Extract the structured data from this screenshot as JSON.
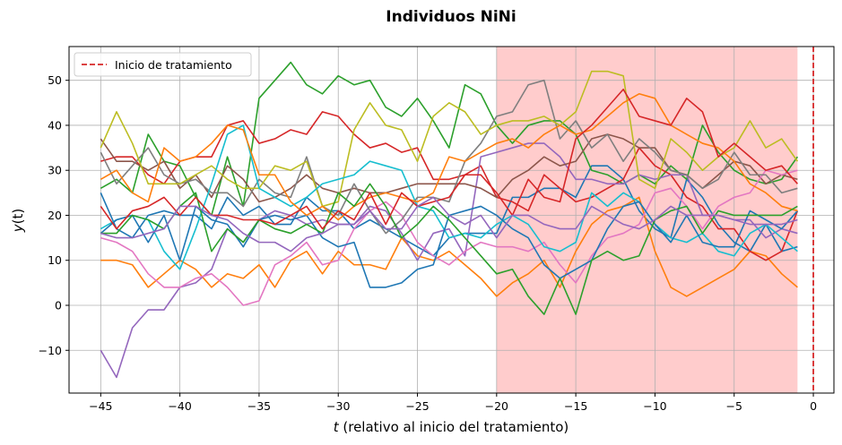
{
  "chart_data": {
    "type": "line",
    "title": "Individuos NiNi",
    "xlabel_var": "t",
    "xlabel_rest": " (relativo al inicio del tratamiento)",
    "ylabel_var": "y",
    "ylabel_rest": "(t)",
    "xlim": [
      -47,
      1.3
    ],
    "ylim": [
      -19.5,
      57.5
    ],
    "xticks": [
      -45,
      -40,
      -35,
      -30,
      -25,
      -20,
      -15,
      -10,
      -5,
      0
    ],
    "xtick_labels": [
      "−45",
      "−40",
      "−35",
      "−30",
      "−25",
      "−20",
      "−15",
      "−10",
      "−5",
      "0"
    ],
    "yticks": [
      -10,
      0,
      10,
      20,
      30,
      40,
      50
    ],
    "ytick_labels": [
      "−10",
      "0",
      "10",
      "20",
      "30",
      "40",
      "50"
    ],
    "grid": true,
    "shaded_region": {
      "x0": -20,
      "x1": -1,
      "color": "#ffcccc"
    },
    "vline": {
      "x": 0,
      "color": "#d62728",
      "style": "dashed",
      "label": "Inicio de tratamiento"
    },
    "legend_position": "top-left",
    "x": [
      -45,
      -44,
      -43,
      -42,
      -41,
      -40,
      -39,
      -38,
      -37,
      -36,
      -35,
      -34,
      -33,
      -32,
      -31,
      -30,
      -29,
      -28,
      -27,
      -26,
      -25,
      -24,
      -23,
      -22,
      -21,
      -20,
      -19,
      -18,
      -17,
      -16,
      -15,
      -14,
      -13,
      -12,
      -11,
      -10,
      -9,
      -8,
      -7,
      -6,
      -5,
      -4,
      -3,
      -2,
      -1
    ],
    "series": [
      {
        "color": "#1f77b4",
        "values": [
          25,
          17,
          15,
          20,
          21,
          20,
          20,
          17,
          24,
          20,
          22,
          18,
          18,
          24,
          21,
          21,
          17,
          19,
          17,
          15,
          13,
          11,
          15,
          16,
          16,
          16,
          24,
          24,
          26,
          26,
          24,
          31,
          31,
          28,
          21,
          17,
          15,
          28,
          24,
          18,
          14,
          12,
          18,
          12,
          13
        ]
      },
      {
        "color": "#ff7f0e",
        "values": [
          10,
          10,
          9,
          4,
          7,
          10,
          8,
          4,
          7,
          6,
          9,
          4,
          10,
          12,
          7,
          12,
          9,
          9,
          8,
          15,
          11,
          10,
          12,
          9,
          6,
          2,
          5,
          7,
          10,
          4,
          12,
          18,
          21,
          22,
          24,
          12,
          4,
          2,
          4,
          6,
          8,
          12,
          11,
          7,
          4
        ]
      },
      {
        "color": "#2ca02c",
        "values": [
          26,
          28,
          25,
          38,
          32,
          31,
          24,
          20,
          33,
          22,
          46,
          50,
          54,
          49,
          47,
          51,
          49,
          50,
          44,
          42,
          46,
          41,
          35,
          49,
          47,
          40,
          36,
          40,
          41,
          41,
          38,
          30,
          29,
          27,
          29,
          27,
          31,
          28,
          40,
          34,
          30,
          28,
          27,
          28,
          33
        ]
      },
      {
        "color": "#d62728",
        "values": [
          32,
          33,
          33,
          29,
          27,
          32,
          33,
          33,
          40,
          41,
          36,
          37,
          39,
          38,
          43,
          42,
          38,
          35,
          36,
          34,
          35,
          28,
          28,
          29,
          31,
          24,
          23,
          21,
          29,
          26,
          23,
          24,
          26,
          28,
          35,
          31,
          29,
          24,
          22,
          17,
          17,
          12,
          10,
          12,
          21
        ]
      },
      {
        "color": "#9467bd",
        "values": [
          -10,
          -16,
          -5,
          -1,
          -1,
          4,
          5,
          8,
          17,
          14,
          19,
          21,
          20,
          18,
          19,
          18,
          18,
          22,
          21,
          16,
          10,
          16,
          17,
          11,
          33,
          34,
          35,
          36,
          36,
          33,
          28,
          28,
          27,
          27,
          29,
          28,
          29,
          29,
          20,
          20,
          19,
          19,
          15,
          17,
          16
        ]
      },
      {
        "color": "#8c564b",
        "values": [
          37,
          32,
          32,
          30,
          32,
          26,
          29,
          24,
          31,
          28,
          23,
          24,
          26,
          29,
          26,
          25,
          26,
          25,
          25,
          26,
          27,
          27,
          27,
          27,
          26,
          24,
          28,
          30,
          33,
          31,
          32,
          37,
          38,
          37,
          35,
          35,
          30,
          29,
          26,
          29,
          32,
          31,
          27,
          29,
          28
        ]
      },
      {
        "color": "#e377c2",
        "values": [
          15,
          14,
          12,
          7,
          4,
          4,
          6,
          7,
          4,
          0,
          1,
          9,
          11,
          14,
          9,
          10,
          17,
          21,
          23,
          20,
          14,
          11,
          9,
          12,
          14,
          13,
          13,
          12,
          14,
          9,
          5,
          11,
          15,
          16,
          18,
          25,
          26,
          22,
          17,
          22,
          24,
          25,
          30,
          29,
          30
        ]
      },
      {
        "color": "#7f7f7f",
        "values": [
          34,
          27,
          31,
          35,
          29,
          27,
          28,
          25,
          25,
          22,
          28,
          25,
          24,
          33,
          22,
          20,
          27,
          21,
          16,
          19,
          24,
          24,
          23,
          32,
          36,
          42,
          43,
          49,
          50,
          37,
          41,
          35,
          38,
          32,
          37,
          34,
          30,
          29,
          26,
          28,
          34,
          29,
          29,
          25,
          26
        ]
      },
      {
        "color": "#bcbd22",
        "values": [
          35,
          43,
          36,
          27,
          27,
          27,
          29,
          31,
          28,
          26,
          26,
          31,
          30,
          32,
          22,
          23,
          39,
          45,
          40,
          39,
          32,
          42,
          45,
          43,
          38,
          40,
          41,
          41,
          42,
          40,
          43,
          52,
          52,
          51,
          28,
          26,
          37,
          34,
          30,
          33,
          35,
          41,
          35,
          37,
          32
        ]
      },
      {
        "color": "#17becf",
        "values": [
          17,
          19,
          20,
          19,
          12,
          8,
          17,
          27,
          38,
          40,
          26,
          24,
          22,
          24,
          27,
          28,
          29,
          32,
          31,
          30,
          22,
          21,
          15,
          16,
          15,
          18,
          20,
          18,
          13,
          12,
          14,
          25,
          22,
          25,
          23,
          18,
          15,
          14,
          16,
          12,
          11,
          16,
          18,
          15,
          12
        ]
      },
      {
        "color": "#1f77b4",
        "values": [
          16,
          19,
          20,
          14,
          20,
          10,
          22,
          19,
          18,
          13,
          19,
          20,
          19,
          20,
          15,
          13,
          14,
          4,
          4,
          5,
          8,
          9,
          20,
          21,
          22,
          20,
          17,
          15,
          9,
          6,
          8,
          10,
          17,
          22,
          23,
          18,
          14,
          20,
          14,
          13,
          13,
          21,
          19,
          17,
          21
        ]
      },
      {
        "color": "#ff7f0e",
        "values": [
          28,
          30,
          25,
          23,
          35,
          32,
          33,
          36,
          40,
          39,
          29,
          29,
          23,
          20,
          22,
          19,
          22,
          24,
          25,
          24,
          23,
          25,
          33,
          32,
          34,
          36,
          37,
          35,
          38,
          40,
          38,
          39,
          42,
          45,
          47,
          46,
          40,
          38,
          36,
          35,
          32,
          27,
          25,
          22,
          21
        ]
      },
      {
        "color": "#2ca02c",
        "values": [
          16,
          16,
          20,
          19,
          17,
          22,
          25,
          12,
          17,
          14,
          19,
          17,
          16,
          18,
          16,
          25,
          22,
          27,
          22,
          15,
          18,
          22,
          19,
          15,
          11,
          7,
          8,
          2,
          -2,
          6,
          -2,
          10,
          12,
          10,
          11,
          19,
          21,
          22,
          16,
          21,
          20,
          20,
          20,
          20,
          22
        ]
      },
      {
        "color": "#d62728",
        "values": [
          22,
          17,
          21,
          22,
          24,
          20,
          24,
          20,
          20,
          19,
          19,
          18,
          20,
          22,
          17,
          21,
          19,
          25,
          18,
          25,
          22,
          23,
          24,
          29,
          29,
          25,
          20,
          28,
          24,
          23,
          37,
          40,
          44,
          48,
          42,
          41,
          40,
          46,
          43,
          33,
          36,
          33,
          30,
          31,
          27
        ]
      },
      {
        "color": "#9467bd",
        "values": [
          16,
          15,
          15,
          16,
          17,
          22,
          22,
          20,
          19,
          16,
          14,
          14,
          12,
          15,
          16,
          18,
          18,
          21,
          17,
          17,
          22,
          24,
          20,
          18,
          20,
          15,
          20,
          20,
          18,
          17,
          17,
          22,
          20,
          18,
          17,
          19,
          22,
          20,
          20,
          20,
          19,
          18,
          18,
          18,
          19
        ]
      }
    ]
  }
}
